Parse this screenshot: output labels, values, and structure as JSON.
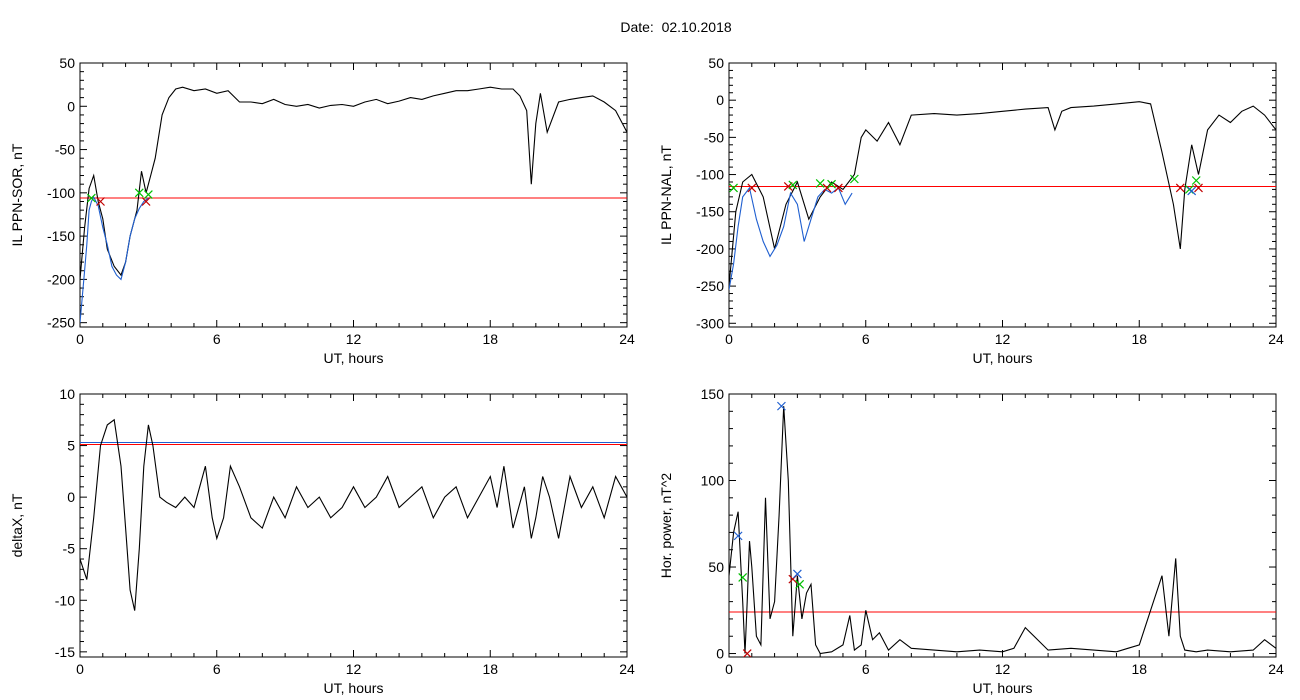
{
  "header": {
    "title": "Date:  02.10.2018"
  },
  "chart_data": [
    {
      "type": "line",
      "ylabel": "IL PPN-SOR, nT",
      "xlabel": "UT, hours",
      "xlim": [
        0,
        24
      ],
      "ylim": [
        -255,
        50
      ],
      "xticks": [
        0,
        6,
        12,
        18,
        24
      ],
      "yticks": [
        -250,
        -200,
        -150,
        -100,
        -50,
        0,
        50
      ],
      "threshold": {
        "value": -106,
        "color": "#ff0000"
      },
      "series": [
        {
          "color": "#000000",
          "x": [
            0,
            0.2,
            0.4,
            0.6,
            0.8,
            1.0,
            1.2,
            1.5,
            1.8,
            2.0,
            2.2,
            2.5,
            2.7,
            2.9,
            3.1,
            3.3,
            3.6,
            3.9,
            4.2,
            4.5,
            5,
            5.5,
            6,
            6.5,
            7,
            7.5,
            8,
            8.5,
            9,
            9.5,
            10,
            10.5,
            11,
            11.5,
            12,
            12.5,
            13,
            13.5,
            14,
            14.5,
            15,
            15.5,
            16,
            16.5,
            17,
            17.5,
            18,
            18.5,
            19,
            19.3,
            19.6,
            19.8,
            20.0,
            20.2,
            20.5,
            21,
            21.5,
            22,
            22.5,
            23,
            23.5,
            24
          ],
          "y": [
            -200,
            -140,
            -95,
            -80,
            -110,
            -130,
            -165,
            -185,
            -195,
            -180,
            -150,
            -120,
            -75,
            -100,
            -80,
            -60,
            -10,
            10,
            20,
            22,
            18,
            20,
            15,
            18,
            5,
            5,
            3,
            8,
            2,
            0,
            2,
            -2,
            1,
            2,
            0,
            5,
            8,
            3,
            6,
            10,
            8,
            12,
            15,
            18,
            18,
            20,
            22,
            20,
            20,
            12,
            -5,
            -90,
            -20,
            15,
            -30,
            5,
            8,
            10,
            12,
            5,
            -5,
            -30
          ]
        },
        {
          "color": "#1f5fd0",
          "x": [
            0,
            0.1,
            0.2,
            0.3,
            0.4,
            0.5,
            0.6,
            0.8,
            1.0,
            1.2,
            1.4,
            1.6,
            1.8,
            2.0,
            2.2,
            2.4,
            2.6,
            2.8,
            3.0
          ],
          "y": [
            -250,
            -220,
            -190,
            -160,
            -120,
            -110,
            -105,
            -115,
            -140,
            -160,
            -185,
            -195,
            -200,
            -180,
            -150,
            -130,
            -118,
            -110,
            -106
          ]
        }
      ],
      "markers": [
        {
          "x": 0.5,
          "y": -106,
          "color": "#00c000"
        },
        {
          "x": 0.9,
          "y": -110,
          "color": "#c00000"
        },
        {
          "x": 2.6,
          "y": -100,
          "color": "#00c000"
        },
        {
          "x": 2.9,
          "y": -110,
          "color": "#c00000"
        },
        {
          "x": 3.0,
          "y": -102,
          "color": "#00c000"
        }
      ]
    },
    {
      "type": "line",
      "ylabel": "IL PPN-NAL, nT",
      "xlabel": "UT, hours",
      "xlim": [
        0,
        24
      ],
      "ylim": [
        -305,
        50
      ],
      "xticks": [
        0,
        6,
        12,
        18,
        24
      ],
      "yticks": [
        -300,
        -250,
        -200,
        -150,
        -100,
        -50,
        0,
        50
      ],
      "threshold": {
        "value": -116,
        "color": "#ff0000"
      },
      "series": [
        {
          "color": "#000000",
          "x": [
            0,
            0.3,
            0.6,
            1,
            1.5,
            2,
            2.5,
            3,
            3.5,
            4,
            4.5,
            5,
            5.5,
            5.8,
            6,
            6.5,
            7,
            7.5,
            8,
            9,
            10,
            11,
            12,
            13,
            14,
            14.3,
            14.6,
            15,
            16,
            17,
            18,
            18.5,
            19,
            19.5,
            19.8,
            20,
            20.3,
            20.6,
            21,
            21.5,
            22,
            22.5,
            23,
            23.5,
            24
          ],
          "y": [
            -250,
            -150,
            -110,
            -100,
            -130,
            -200,
            -140,
            -110,
            -160,
            -130,
            -110,
            -120,
            -100,
            -50,
            -40,
            -55,
            -30,
            -60,
            -20,
            -18,
            -20,
            -18,
            -15,
            -12,
            -10,
            -40,
            -15,
            -10,
            -8,
            -5,
            -2,
            -5,
            -70,
            -140,
            -200,
            -120,
            -60,
            -100,
            -40,
            -20,
            -30,
            -15,
            -8,
            -20,
            -40
          ]
        },
        {
          "color": "#1f5fd0",
          "x": [
            0,
            0.2,
            0.4,
            0.6,
            0.9,
            1.2,
            1.5,
            1.8,
            2.1,
            2.4,
            2.7,
            3.0,
            3.3,
            3.6,
            3.9,
            4.2,
            4.5,
            4.8,
            5.1,
            5.4
          ],
          "y": [
            -255,
            -220,
            -170,
            -130,
            -118,
            -160,
            -190,
            -210,
            -195,
            -170,
            -125,
            -140,
            -190,
            -160,
            -130,
            -120,
            -125,
            -118,
            -140,
            -125
          ]
        }
      ],
      "markers": [
        {
          "x": 0.2,
          "y": -118,
          "color": "#00c000"
        },
        {
          "x": 1.0,
          "y": -118,
          "color": "#c00000"
        },
        {
          "x": 2.6,
          "y": -116,
          "color": "#c00000"
        },
        {
          "x": 2.8,
          "y": -114,
          "color": "#00c000"
        },
        {
          "x": 4.0,
          "y": -112,
          "color": "#00c000"
        },
        {
          "x": 4.3,
          "y": -118,
          "color": "#c00000"
        },
        {
          "x": 4.5,
          "y": -113,
          "color": "#00c000"
        },
        {
          "x": 4.8,
          "y": -118,
          "color": "#c00000"
        },
        {
          "x": 5.5,
          "y": -106,
          "color": "#00c000"
        },
        {
          "x": 19.8,
          "y": -118,
          "color": "#c00000"
        },
        {
          "x": 20.2,
          "y": -120,
          "color": "#00c000"
        },
        {
          "x": 20.3,
          "y": -122,
          "color": "#1f5fd0"
        },
        {
          "x": 20.5,
          "y": -108,
          "color": "#00c000"
        },
        {
          "x": 20.6,
          "y": -118,
          "color": "#c00000"
        }
      ]
    },
    {
      "type": "line",
      "ylabel": "deltaX, nT",
      "xlabel": "UT, hours",
      "xlim": [
        0,
        24
      ],
      "ylim": [
        -15.5,
        10
      ],
      "xticks": [
        0,
        6,
        12,
        18,
        24
      ],
      "yticks": [
        -15,
        -10,
        -5,
        0,
        5,
        10
      ],
      "thresholds": [
        {
          "value": 5.3,
          "color": "#1f5fd0"
        },
        {
          "value": 5.1,
          "color": "#ff0000"
        }
      ],
      "series": [
        {
          "color": "#000000",
          "x": [
            0,
            0.3,
            0.6,
            0.9,
            1.2,
            1.5,
            1.8,
            2.0,
            2.2,
            2.4,
            2.6,
            2.8,
            3.0,
            3.2,
            3.5,
            3.8,
            4.2,
            4.6,
            5,
            5.5,
            5.8,
            6,
            6.3,
            6.6,
            7,
            7.5,
            8,
            8.5,
            9,
            9.5,
            10,
            10.5,
            11,
            11.5,
            12,
            12.5,
            13,
            13.5,
            14,
            14.5,
            15,
            15.5,
            16,
            16.5,
            17,
            17.5,
            18,
            18.3,
            18.6,
            19,
            19.5,
            19.8,
            20,
            20.3,
            20.6,
            21,
            21.5,
            22,
            22.5,
            23,
            23.5,
            24
          ],
          "y": [
            -6,
            -8,
            -2,
            5,
            7,
            7.5,
            3,
            -3,
            -9,
            -11,
            -5,
            3,
            7,
            5,
            0,
            -0.5,
            -1,
            0,
            -1,
            3,
            -2,
            -4,
            -2,
            3,
            1,
            -2,
            -3,
            0,
            -2,
            1,
            -1,
            0,
            -2,
            -1,
            1,
            -1,
            0,
            2,
            -1,
            0,
            1,
            -2,
            0,
            1,
            -2,
            0,
            2,
            -1,
            3,
            -3,
            1,
            -4,
            -2,
            2,
            0,
            -4,
            2,
            -1,
            1,
            -2,
            2,
            0
          ]
        }
      ],
      "markers": []
    },
    {
      "type": "line",
      "ylabel": "Hor. power, nT^2",
      "xlabel": "UT, hours",
      "xlim": [
        0,
        24
      ],
      "ylim": [
        -2,
        150
      ],
      "xticks": [
        0,
        6,
        12,
        18,
        24
      ],
      "yticks": [
        0,
        50,
        100,
        150
      ],
      "threshold": {
        "value": 24,
        "color": "#ff0000"
      },
      "series": [
        {
          "color": "#000000",
          "x": [
            0,
            0.2,
            0.4,
            0.6,
            0.7,
            0.8,
            0.9,
            1.0,
            1.2,
            1.4,
            1.6,
            1.8,
            2.0,
            2.2,
            2.4,
            2.6,
            2.8,
            3.0,
            3.2,
            3.4,
            3.6,
            3.8,
            4.0,
            4.5,
            5,
            5.3,
            5.5,
            5.8,
            6,
            6.3,
            6.6,
            7,
            7.5,
            8,
            9,
            10,
            11,
            12,
            12.5,
            13,
            14,
            15,
            16,
            17,
            17.5,
            18,
            18.5,
            19,
            19.3,
            19.6,
            19.8,
            20,
            20.5,
            21,
            22,
            23,
            23.5,
            24
          ],
          "y": [
            45,
            70,
            82,
            30,
            0,
            30,
            65,
            50,
            10,
            5,
            90,
            20,
            30,
            80,
            143,
            100,
            10,
            45,
            20,
            35,
            40,
            5,
            0,
            1,
            5,
            22,
            2,
            5,
            25,
            8,
            12,
            2,
            8,
            3,
            2,
            1,
            2,
            1,
            3,
            15,
            2,
            3,
            2,
            1,
            3,
            5,
            25,
            45,
            10,
            55,
            10,
            2,
            1,
            2,
            1,
            2,
            8,
            3
          ]
        }
      ],
      "markers": [
        {
          "x": 0.4,
          "y": 68,
          "color": "#1f5fd0"
        },
        {
          "x": 0.6,
          "y": 44,
          "color": "#00c000"
        },
        {
          "x": 0.8,
          "y": 0,
          "color": "#c00000"
        },
        {
          "x": 2.3,
          "y": 143,
          "color": "#1f5fd0"
        },
        {
          "x": 2.8,
          "y": 43,
          "color": "#c00000"
        },
        {
          "x": 3.0,
          "y": 46,
          "color": "#1f5fd0"
        },
        {
          "x": 3.1,
          "y": 40,
          "color": "#00c000"
        }
      ]
    }
  ]
}
